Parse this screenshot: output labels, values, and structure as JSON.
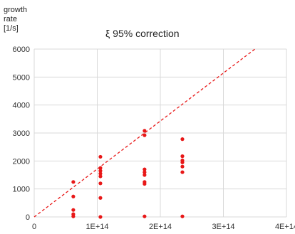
{
  "chart_data": {
    "type": "scatter",
    "title": "ξ 95% correction",
    "ylabel": [
      "growth",
      "rate",
      "[1/s]"
    ],
    "xlabel": "",
    "xlim": [
      0,
      400000000000000.0
    ],
    "ylim": [
      0,
      6000
    ],
    "xticks": [
      0,
      100000000000000.0,
      200000000000000.0,
      300000000000000.0,
      400000000000000.0
    ],
    "xtick_labels": [
      "0",
      "1E+14",
      "2E+14",
      "3E+14",
      "4E+14"
    ],
    "yticks": [
      0,
      1000,
      2000,
      3000,
      4000,
      5000,
      6000
    ],
    "ytick_labels": [
      "0",
      "1000",
      "2000",
      "3000",
      "4000",
      "5000",
      "6000"
    ],
    "grid": "vertical-and-horizontal",
    "colors": {
      "points": "#e81818",
      "line": "#e81818",
      "grid": "#d9d9d9"
    },
    "series": [
      {
        "x": [
          62000000000000.0,
          62000000000000.0,
          62000000000000.0,
          62000000000000.0,
          62000000000000.0,
          105000000000000.0,
          105000000000000.0,
          105000000000000.0,
          105000000000000.0,
          105000000000000.0,
          105000000000000.0,
          105000000000000.0,
          105000000000000.0,
          175000000000000.0,
          175000000000000.0,
          175000000000000.0,
          175000000000000.0,
          175000000000000.0,
          175000000000000.0,
          175000000000000.0,
          175000000000000.0,
          235000000000000.0,
          235000000000000.0,
          235000000000000.0,
          235000000000000.0,
          235000000000000.0,
          235000000000000.0,
          235000000000000.0
        ],
        "y": [
          1250,
          730,
          250,
          100,
          20,
          2150,
          1750,
          1650,
          1550,
          1450,
          1200,
          680,
          0,
          3080,
          2920,
          1700,
          1600,
          1500,
          1250,
          1180,
          20,
          2780,
          2170,
          2020,
          1950,
          1800,
          1600,
          20
        ]
      }
    ],
    "reference_line": {
      "style": "dashed",
      "x": [
        0,
        350000000000000.0
      ],
      "y": [
        0,
        6000
      ]
    }
  }
}
